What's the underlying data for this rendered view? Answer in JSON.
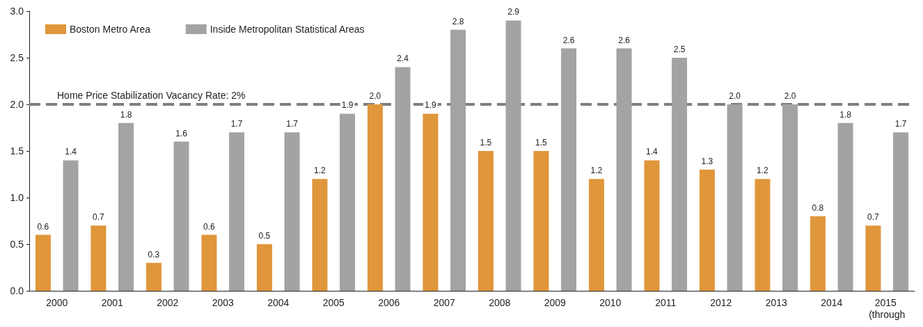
{
  "chart_data": {
    "type": "bar",
    "categories": [
      "2000",
      "2001",
      "2002",
      "2003",
      "2004",
      "2005",
      "2006",
      "2007",
      "2008",
      "2009",
      "2010",
      "2011",
      "2012",
      "2013",
      "2014",
      "2015 (through"
    ],
    "series": [
      {
        "name": "Boston Metro Area",
        "color": "#e0963a",
        "values": [
          0.6,
          0.7,
          0.3,
          0.6,
          0.5,
          1.2,
          2.0,
          1.9,
          1.5,
          1.5,
          1.2,
          1.4,
          1.3,
          1.2,
          0.8,
          0.7
        ],
        "value_labels": [
          "0.6",
          "0.7",
          "0.3",
          "0.6",
          "0.5",
          "1.2",
          "2.0",
          "1.9",
          "1.5",
          "1.5",
          "1.2",
          "1.4",
          "1.3",
          "1.2",
          "0.8",
          "0.7"
        ]
      },
      {
        "name": "Inside Metropolitan Statistical Areas",
        "color": "#a3a3a5",
        "values": [
          1.4,
          1.8,
          1.6,
          1.7,
          1.7,
          1.9,
          2.4,
          2.8,
          2.9,
          2.6,
          2.6,
          2.5,
          2.0,
          2.0,
          1.8,
          1.7
        ],
        "value_labels": [
          "1.4",
          "1.8",
          "1.6",
          "1.7",
          "1.7",
          "1.9",
          "2.4",
          "2.8",
          "2.9",
          "2.6",
          "2.6",
          "2.5",
          "2.0",
          "2.0",
          "1.8",
          "1.7"
        ]
      }
    ],
    "ylim": [
      0,
      3
    ],
    "yticks": [
      {
        "value": 0,
        "label": "0.0"
      },
      {
        "value": 0.5,
        "label": "0.5"
      },
      {
        "value": 1,
        "label": "1.0"
      },
      {
        "value": 1.5,
        "label": "1.5"
      },
      {
        "value": 2,
        "label": "2.0"
      },
      {
        "value": 2.5,
        "label": "2.5"
      },
      {
        "value": 3,
        "label": "3.0"
      }
    ],
    "ref_lines": [
      {
        "axis": "y",
        "value": 2,
        "label": "Home Price Stabilization Vacancy Rate: 2%",
        "color": "#7f7f7f",
        "line_style": "dashed"
      }
    ],
    "grid": false,
    "legend": "top left"
  }
}
